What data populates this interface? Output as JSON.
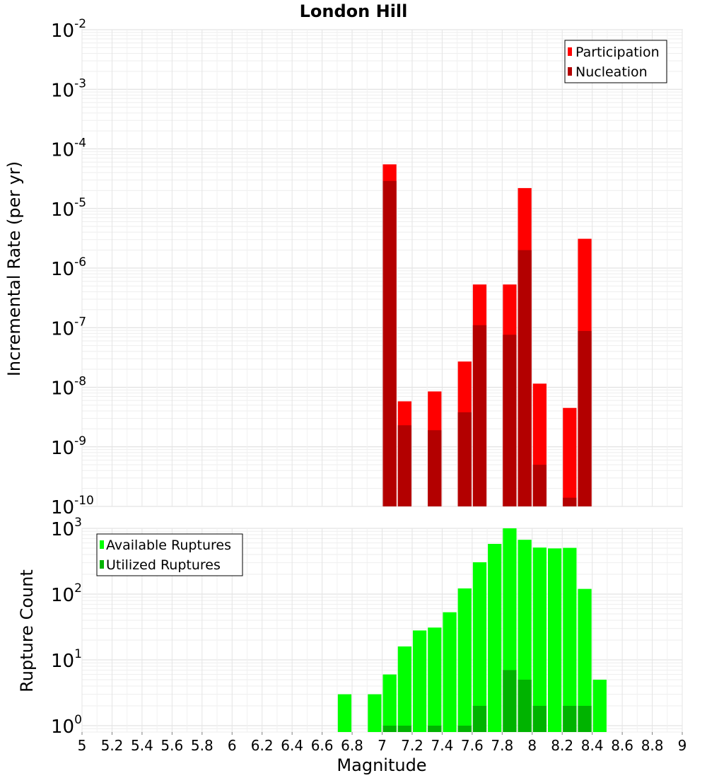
{
  "chart_data": [
    {
      "type": "bar",
      "title": "London Hill",
      "ylabel": "Incremental Rate (per yr)",
      "yscale": "log",
      "ylim": [
        1e-10,
        0.01
      ],
      "xlim": [
        5,
        9
      ],
      "ytick_base": "10",
      "ytick_exponents": [
        "-10",
        "-9",
        "-8",
        "-7",
        "-6",
        "-5",
        "-4",
        "-3",
        "-2"
      ],
      "grid": true,
      "legend_position": "top-right",
      "series": [
        {
          "name": "Participation",
          "color": "#ff0000",
          "points": [
            {
              "x": 7.05,
              "y": 5.5e-05
            },
            {
              "x": 7.15,
              "y": 5.8e-09
            },
            {
              "x": 7.35,
              "y": 8.5e-09
            },
            {
              "x": 7.55,
              "y": 2.7e-08
            },
            {
              "x": 7.65,
              "y": 5.3e-07
            },
            {
              "x": 7.85,
              "y": 5.3e-07
            },
            {
              "x": 7.95,
              "y": 2.2e-05
            },
            {
              "x": 8.05,
              "y": 1.15e-08
            },
            {
              "x": 8.25,
              "y": 4.5e-09
            },
            {
              "x": 8.35,
              "y": 3.1e-06
            }
          ]
        },
        {
          "name": "Nucleation",
          "color": "#b30000",
          "points": [
            {
              "x": 7.05,
              "y": 2.9e-05
            },
            {
              "x": 7.15,
              "y": 2.3e-09
            },
            {
              "x": 7.35,
              "y": 1.9e-09
            },
            {
              "x": 7.55,
              "y": 3.8e-09
            },
            {
              "x": 7.65,
              "y": 1.1e-07
            },
            {
              "x": 7.85,
              "y": 7.6e-08
            },
            {
              "x": 7.95,
              "y": 2e-06
            },
            {
              "x": 8.05,
              "y": 5e-10
            },
            {
              "x": 8.25,
              "y": 1.4e-10
            },
            {
              "x": 8.35,
              "y": 8.8e-08
            }
          ]
        }
      ]
    },
    {
      "type": "bar",
      "xlabel": "Magnitude",
      "ylabel": "Rupture Count",
      "yscale": "log",
      "ylim": [
        0.8,
        1000
      ],
      "xlim": [
        5,
        9
      ],
      "ytick_base": "10",
      "ytick_exponents": [
        "0",
        "1",
        "2",
        "3"
      ],
      "xticks": [
        "5",
        "5.2",
        "5.4",
        "5.6",
        "5.8",
        "6",
        "6.2",
        "6.4",
        "6.6",
        "6.8",
        "7",
        "7.2",
        "7.4",
        "7.6",
        "7.8",
        "8",
        "8.2",
        "8.4",
        "8.6",
        "8.8",
        "9"
      ],
      "grid": true,
      "legend_position": "top-left",
      "series": [
        {
          "name": "Available Ruptures",
          "color": "#00ff00",
          "points": [
            {
              "x": 6.75,
              "y": 3
            },
            {
              "x": 6.95,
              "y": 3
            },
            {
              "x": 7.05,
              "y": 6
            },
            {
              "x": 7.15,
              "y": 16
            },
            {
              "x": 7.25,
              "y": 28
            },
            {
              "x": 7.35,
              "y": 31
            },
            {
              "x": 7.45,
              "y": 53
            },
            {
              "x": 7.55,
              "y": 122
            },
            {
              "x": 7.65,
              "y": 305
            },
            {
              "x": 7.75,
              "y": 580
            },
            {
              "x": 7.85,
              "y": 1000
            },
            {
              "x": 7.95,
              "y": 670
            },
            {
              "x": 8.05,
              "y": 510
            },
            {
              "x": 8.15,
              "y": 495
            },
            {
              "x": 8.25,
              "y": 505
            },
            {
              "x": 8.35,
              "y": 120
            },
            {
              "x": 8.45,
              "y": 5
            }
          ]
        },
        {
          "name": "Utilized Ruptures",
          "color": "#00b300",
          "points": [
            {
              "x": 7.05,
              "y": 1
            },
            {
              "x": 7.15,
              "y": 1
            },
            {
              "x": 7.35,
              "y": 1
            },
            {
              "x": 7.55,
              "y": 1
            },
            {
              "x": 7.65,
              "y": 2
            },
            {
              "x": 7.85,
              "y": 7
            },
            {
              "x": 7.95,
              "y": 5
            },
            {
              "x": 8.05,
              "y": 2
            },
            {
              "x": 8.25,
              "y": 2
            },
            {
              "x": 8.35,
              "y": 2
            }
          ]
        }
      ]
    }
  ]
}
